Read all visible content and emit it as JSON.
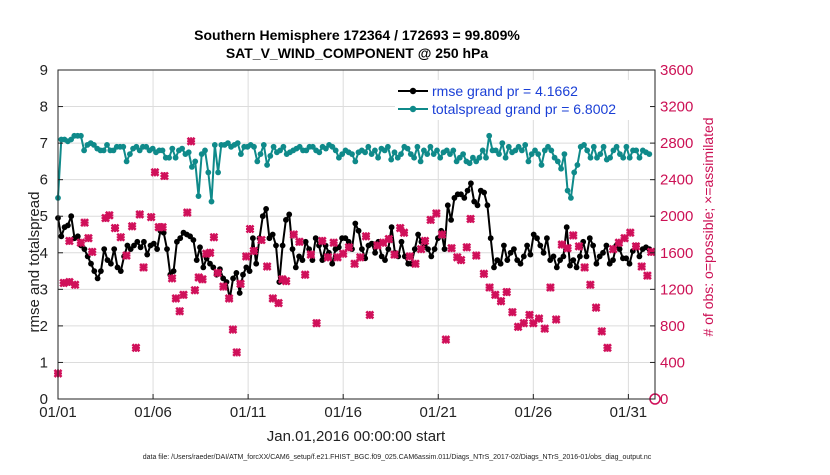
{
  "chart_data": {
    "type": "line",
    "title": "Southern Hemisphere 172364 / 172693 = 99.809%",
    "subtitle": "SAT_V_WIND_COMPONENT @ 250 hPa",
    "xlabel": "Jan.01,2016 00:00:00 start",
    "ylabel": "rmse and totalspread",
    "y2label": "# of obs: o=possible; ×=assimilated",
    "x_ticks": [
      "01/01",
      "01/06",
      "01/11",
      "01/16",
      "01/21",
      "01/26",
      "01/31"
    ],
    "x_tick_days": [
      0,
      5,
      10,
      15,
      20,
      25,
      30
    ],
    "xlim": [
      0,
      31.4
    ],
    "ylim": [
      0,
      9
    ],
    "y_ticks": [
      "0",
      "1",
      "2",
      "3",
      "4",
      "5",
      "6",
      "7",
      "8",
      "9"
    ],
    "y2lim": [
      0,
      3600
    ],
    "y2_ticks": [
      "0",
      "400",
      "800",
      "1200",
      "1600",
      "2000",
      "2400",
      "2800",
      "3200",
      "3600"
    ],
    "grid": true,
    "legend_position": "top-right",
    "series": [
      {
        "name": "rmse grand pr = 4.1662",
        "color": "#000000",
        "marker": "circle",
        "axis": "left",
        "values": [
          4.95,
          4.45,
          4.7,
          4.75,
          5.0,
          4.4,
          4.45,
          4.2,
          4.1,
          3.9,
          3.7,
          3.5,
          3.3,
          3.5,
          4.1,
          3.8,
          3.7,
          4.1,
          3.6,
          3.5,
          3.9,
          4.2,
          4.1,
          4.2,
          4.3,
          4.15,
          4.3,
          3.95,
          4.2,
          4.25,
          4.1,
          4.6,
          4.55,
          4.1,
          3.4,
          3.5,
          4.3,
          4.4,
          4.55,
          4.5,
          4.45,
          4.35,
          3.8,
          4.15,
          3.6,
          3.85,
          3.7,
          3.6,
          3.4,
          3.55,
          3.3,
          3.2,
          2.75,
          3.3,
          3.45,
          2.9,
          3.4,
          3.6,
          3.5,
          4.4,
          3.7,
          4.4,
          5.0,
          5.2,
          4.4,
          4.5,
          4.2,
          3.2,
          4.2,
          4.9,
          5.05,
          4.1,
          3.6,
          3.9,
          3.8,
          4.3,
          4.1,
          3.8,
          4.4,
          4.2,
          3.8,
          4.2,
          4.0,
          3.7,
          4.1,
          4.15,
          4.4,
          4.4,
          4.3,
          4.1,
          4.8,
          4.6,
          4.1,
          3.85,
          4.2,
          4.25,
          4.0,
          4.3,
          3.9,
          3.8,
          4.1,
          4.7,
          4.0,
          3.9,
          4.3,
          3.9,
          3.7,
          3.7,
          4.1,
          4.5,
          4.3,
          4.2,
          4.1,
          3.9,
          4.1,
          4.4,
          4.6,
          4.1,
          5.3,
          4.9,
          5.5,
          5.6,
          5.6,
          5.5,
          5.7,
          5.9,
          5.4,
          5.3,
          5.7,
          5.65,
          5.3,
          4.4,
          3.6,
          3.8,
          3.7,
          4.2,
          3.8,
          4.0,
          4.1,
          3.8,
          3.7,
          3.9,
          4.2,
          3.95,
          4.5,
          4.4,
          4.2,
          4.0,
          4.4,
          3.8,
          3.9,
          3.6,
          3.8,
          3.9,
          4.7,
          3.65,
          3.8,
          3.6,
          3.9,
          4.3,
          3.9,
          4.4,
          4.2,
          3.7,
          3.9,
          4.0,
          4.2,
          3.7,
          3.8,
          4.2,
          4.1,
          3.85,
          3.85,
          3.7,
          4.05,
          4.2,
          3.9,
          4.1,
          4.15,
          4.1
        ]
      },
      {
        "name": "totalspread grand pr = 6.8002",
        "color": "#0f8a8a",
        "marker": "circle",
        "axis": "left",
        "values": [
          5.5,
          7.1,
          7.1,
          7.05,
          7.1,
          7.2,
          7.2,
          7.2,
          6.8,
          6.95,
          7.0,
          6.95,
          6.85,
          6.8,
          6.8,
          6.95,
          6.8,
          6.8,
          6.9,
          6.9,
          6.9,
          6.5,
          6.7,
          6.85,
          6.9,
          6.8,
          6.9,
          6.9,
          6.8,
          6.85,
          6.75,
          6.8,
          6.8,
          6.6,
          6.6,
          6.85,
          6.6,
          6.8,
          6.85,
          6.7,
          6.75,
          6.35,
          6.5,
          5.55,
          6.7,
          6.8,
          6.2,
          5.4,
          6.95,
          6.2,
          6.95,
          6.95,
          7.0,
          6.9,
          6.95,
          7.0,
          6.7,
          6.9,
          6.9,
          6.95,
          6.9,
          6.5,
          6.7,
          6.95,
          6.4,
          6.65,
          6.9,
          6.75,
          6.8,
          6.9,
          6.7,
          6.75,
          6.8,
          6.85,
          6.9,
          6.8,
          6.8,
          6.9,
          6.9,
          6.8,
          6.75,
          6.9,
          6.85,
          6.95,
          6.9,
          6.8,
          6.6,
          6.7,
          6.8,
          6.75,
          6.7,
          6.5,
          6.75,
          6.8,
          6.75,
          6.9,
          6.7,
          6.8,
          6.6,
          6.85,
          6.8,
          6.9,
          6.55,
          6.75,
          6.6,
          6.7,
          6.9,
          6.85,
          6.7,
          6.6,
          6.9,
          6.5,
          6.8,
          6.7,
          6.9,
          6.7,
          6.8,
          6.6,
          6.75,
          6.8,
          6.7,
          6.8,
          6.5,
          6.6,
          6.7,
          6.5,
          6.45,
          6.6,
          6.5,
          6.6,
          6.8,
          6.6,
          7.2,
          6.8,
          6.8,
          6.7,
          7.0,
          6.6,
          6.9,
          6.75,
          6.8,
          6.9,
          6.8,
          6.95,
          6.5,
          6.7,
          6.8,
          6.7,
          6.4,
          6.8,
          6.9,
          6.8,
          6.6,
          6.5,
          6.3,
          6.7,
          5.7,
          5.5,
          6.2,
          6.4,
          6.9,
          6.95,
          6.8,
          6.6,
          6.9,
          6.6,
          6.7,
          6.9,
          6.55,
          6.6,
          6.8,
          6.9,
          6.7,
          6.6,
          6.9,
          6.6,
          6.8,
          6.8,
          6.6,
          6.8,
          6.75,
          6.7
        ]
      },
      {
        "name": "assimilated",
        "color": "#d0105a",
        "marker": "x",
        "axis": "right",
        "points": [
          [
            0,
            280
          ],
          [
            0.3,
            1270
          ],
          [
            0.6,
            1280
          ],
          [
            0.9,
            1250
          ],
          [
            0.6,
            1730
          ],
          [
            1.2,
            1710
          ],
          [
            1.4,
            1930
          ],
          [
            1.6,
            1760
          ],
          [
            1.8,
            1610
          ],
          [
            2.5,
            1980
          ],
          [
            2.7,
            2010
          ],
          [
            3,
            1870
          ],
          [
            3.3,
            1770
          ],
          [
            3.6,
            1570
          ],
          [
            3.9,
            1890
          ],
          [
            4.1,
            560
          ],
          [
            4.3,
            2020
          ],
          [
            4.5,
            1440
          ],
          [
            4.9,
            1990
          ],
          [
            5.1,
            2480
          ],
          [
            5.3,
            1880
          ],
          [
            5.5,
            1880
          ],
          [
            5.6,
            2440
          ],
          [
            6,
            1320
          ],
          [
            6.2,
            1100
          ],
          [
            6.4,
            960
          ],
          [
            6.6,
            1140
          ],
          [
            6.8,
            2040
          ],
          [
            7,
            2820
          ],
          [
            7.2,
            1190
          ],
          [
            7.4,
            1330
          ],
          [
            7.6,
            1310
          ],
          [
            7.8,
            1590
          ],
          [
            8,
            1600
          ],
          [
            8.2,
            1770
          ],
          [
            8.4,
            1380
          ],
          [
            8.7,
            1230
          ],
          [
            9,
            1100
          ],
          [
            9.2,
            760
          ],
          [
            9.4,
            510
          ],
          [
            9.6,
            1260
          ],
          [
            9.9,
            1560
          ],
          [
            10.1,
            1860
          ],
          [
            10.3,
            1620
          ],
          [
            10.7,
            1740
          ],
          [
            11,
            1450
          ],
          [
            11.3,
            1100
          ],
          [
            11.6,
            1050
          ],
          [
            11.8,
            1310
          ],
          [
            12,
            1290
          ],
          [
            12.4,
            1800
          ],
          [
            12.7,
            1720
          ],
          [
            13,
            1360
          ],
          [
            13.3,
            1580
          ],
          [
            13.6,
            830
          ],
          [
            13.9,
            1730
          ],
          [
            14.2,
            1550
          ],
          [
            14.5,
            1710
          ],
          [
            14.7,
            1550
          ],
          [
            15,
            1590
          ],
          [
            15.3,
            1660
          ],
          [
            15.6,
            1480
          ],
          [
            15.9,
            1550
          ],
          [
            16.2,
            1780
          ],
          [
            16.4,
            920
          ],
          [
            16.8,
            1680
          ],
          [
            17.1,
            1710
          ],
          [
            17.4,
            1750
          ],
          [
            17.7,
            1580
          ],
          [
            18,
            1870
          ],
          [
            18.2,
            1820
          ],
          [
            18.5,
            1560
          ],
          [
            18.8,
            1480
          ],
          [
            19.1,
            1640
          ],
          [
            19.3,
            1730
          ],
          [
            19.6,
            1960
          ],
          [
            19.9,
            2030
          ],
          [
            20.2,
            1800
          ],
          [
            20.4,
            650
          ],
          [
            20.7,
            1650
          ],
          [
            21,
            1550
          ],
          [
            21.2,
            1520
          ],
          [
            21.5,
            1660
          ],
          [
            21.7,
            1970
          ],
          [
            22,
            1570
          ],
          [
            22.4,
            1370
          ],
          [
            22.7,
            1220
          ],
          [
            23,
            1140
          ],
          [
            23.3,
            1070
          ],
          [
            23.6,
            1170
          ],
          [
            23.9,
            950
          ],
          [
            24.2,
            790
          ],
          [
            24.5,
            830
          ],
          [
            24.8,
            920
          ],
          [
            25,
            830
          ],
          [
            25.3,
            880
          ],
          [
            25.6,
            770
          ],
          [
            25.9,
            1220
          ],
          [
            26.2,
            870
          ],
          [
            26.5,
            1690
          ],
          [
            26.8,
            1650
          ],
          [
            27.1,
            1790
          ],
          [
            27.4,
            1670
          ],
          [
            27.7,
            1440
          ],
          [
            28,
            1250
          ],
          [
            28.3,
            1000
          ],
          [
            28.6,
            740
          ],
          [
            28.9,
            560
          ],
          [
            29.2,
            1640
          ],
          [
            29.5,
            1710
          ],
          [
            29.8,
            1760
          ],
          [
            30.1,
            1820
          ],
          [
            30.4,
            1670
          ],
          [
            30.7,
            1450
          ],
          [
            31,
            1350
          ],
          [
            31.2,
            1610
          ]
        ]
      },
      {
        "name": "possible",
        "color": "#d0105a",
        "marker": "circle-open",
        "axis": "right",
        "points": [
          [
            31.4,
            0
          ]
        ]
      }
    ],
    "footnote": "data file: /Users/raeder/DAI/ATM_forcXX/CAM6_setup/f.e21.FHIST_BGC.f09_025.CAM6assim.011/Diags_NTrS_2017-02/Diags_NTrS_2016-01/obs_diag_output.nc"
  }
}
